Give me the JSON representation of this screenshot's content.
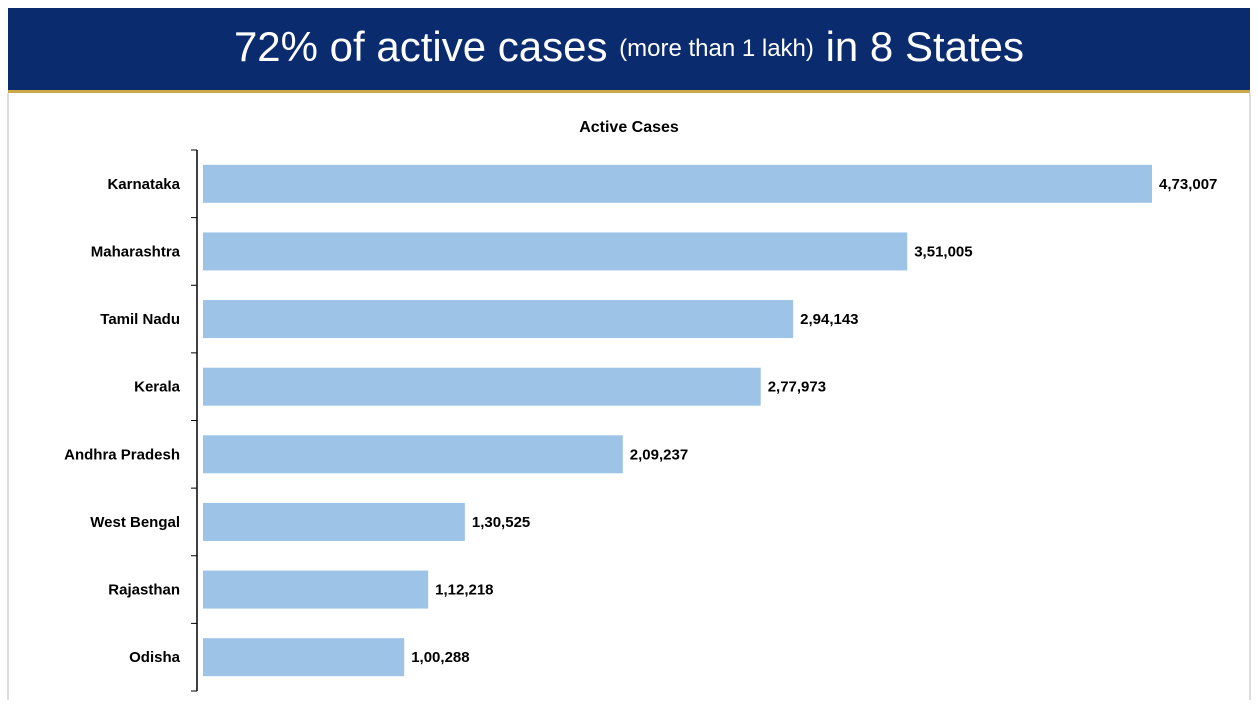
{
  "chart_data": {
    "type": "bar",
    "orientation": "horizontal",
    "title_parts": [
      "72% of active cases",
      "(more than 1 lakh)",
      "in 8 States"
    ],
    "chart_title": "Active Cases",
    "categories": [
      "Karnataka",
      "Maharashtra",
      "Tamil Nadu",
      "Kerala",
      "Andhra Pradesh",
      "West Bengal",
      "Rajasthan",
      "Odisha"
    ],
    "values": [
      473007,
      351005,
      294143,
      277973,
      209237,
      130525,
      112218,
      100288
    ],
    "value_labels": [
      "4,73,007",
      "3,51,005",
      "2,94,143",
      "2,77,973",
      "2,09,237",
      "1,30,525",
      "1,12,218",
      "1,00,288"
    ],
    "color": "#9dc3e6"
  }
}
